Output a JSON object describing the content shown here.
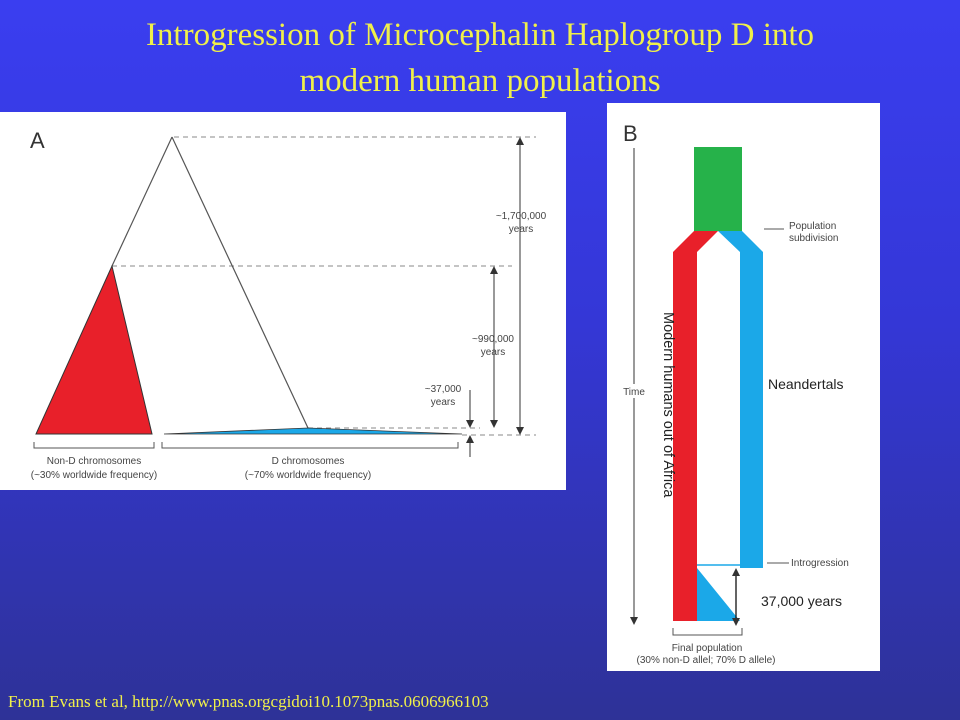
{
  "title": {
    "line1": "Introgression of Microcephalin Haplogroup D into",
    "line2": "modern human populations"
  },
  "footer": "From Evans et al, http://www.pnas.orgcgidoi10.1073pnas.0606966103",
  "colors": {
    "background": "#3437d6",
    "title": "#f0f04a",
    "red": "#e8202a",
    "blue": "#1ba8e8",
    "green": "#26b24a"
  },
  "panel_a": {
    "letter": "A",
    "time_1": "~1,700,000",
    "time_1_unit": "years",
    "time_2": "~990,000",
    "time_2_unit": "years",
    "time_3": "~37,000",
    "time_3_unit": "years",
    "non_d_label": "Non-D chromosomes",
    "non_d_freq": "(~30% worldwide frequency)",
    "d_label": "D chromosomes",
    "d_freq": "(~70% worldwide frequency)"
  },
  "panel_b": {
    "letter": "B",
    "time_label": "Time",
    "subdivision_line1": "Population",
    "subdivision_line2": "subdivision",
    "introgression": "Introgression",
    "final_line1": "Final population",
    "final_line2": "(30% non-D allel; 70% D allele)"
  },
  "overlays": {
    "modern_humans": "Modern humans out of Africa",
    "neandertals": "Neandertals",
    "years_37000": "37,000 years"
  }
}
